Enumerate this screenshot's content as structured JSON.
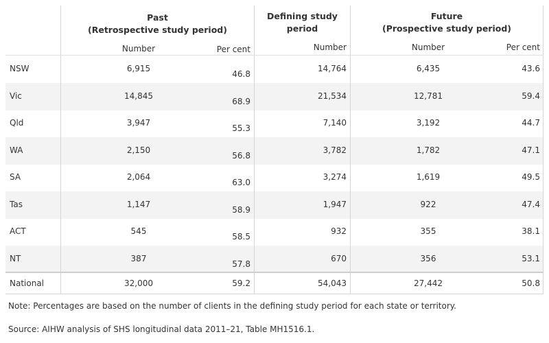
{
  "table": {
    "group_headers": [
      {
        "line1": "Past",
        "line2": "(Retrospective study period)"
      },
      {
        "line1": "Defining study",
        "line2": "period"
      },
      {
        "line1": "Future",
        "line2": "(Prospective study period)"
      }
    ],
    "sub_headers": [
      "Number",
      "Per cent",
      "Number",
      "Number",
      "Per cent"
    ],
    "rows": [
      {
        "label": "NSW",
        "past_number": "6,915",
        "past_pct": "46.8",
        "defining_number": "14,764",
        "future_number": "6,435",
        "future_pct": "43.6"
      },
      {
        "label": "Vic",
        "past_number": "14,845",
        "past_pct": "68.9",
        "defining_number": "21,534",
        "future_number": "12,781",
        "future_pct": "59.4"
      },
      {
        "label": "Qld",
        "past_number": "3,947",
        "past_pct": "55.3",
        "defining_number": "7,140",
        "future_number": "3,192",
        "future_pct": "44.7"
      },
      {
        "label": "WA",
        "past_number": "2,150",
        "past_pct": "56.8",
        "defining_number": "3,782",
        "future_number": "1,782",
        "future_pct": "47.1"
      },
      {
        "label": "SA",
        "past_number": "2,064",
        "past_pct": "63.0",
        "defining_number": "3,274",
        "future_number": "1,619",
        "future_pct": "49.5"
      },
      {
        "label": "Tas",
        "past_number": "1,147",
        "past_pct": "58.9",
        "defining_number": "1,947",
        "future_number": "922",
        "future_pct": "47.4"
      },
      {
        "label": "ACT",
        "past_number": "545",
        "past_pct": "58.5",
        "defining_number": "932",
        "future_number": "355",
        "future_pct": "38.1"
      },
      {
        "label": "NT",
        "past_number": "387",
        "past_pct": "57.8",
        "defining_number": "670",
        "future_number": "356",
        "future_pct": "53.1"
      }
    ],
    "total": {
      "label": "National",
      "past_number": "32,000",
      "past_pct": "59.2",
      "defining_number": "54,043",
      "future_number": "27,442",
      "future_pct": "50.8"
    }
  },
  "note": "Note: Percentages are based on the number of clients in the defining study period for each state or territory.",
  "source": "Source: AIHW analysis of SHS longitudinal data 2011–21, Table MH1516.1.",
  "colors": {
    "band": "#f3f3f3",
    "rule": "#d4d4d4",
    "text": "#333333"
  }
}
